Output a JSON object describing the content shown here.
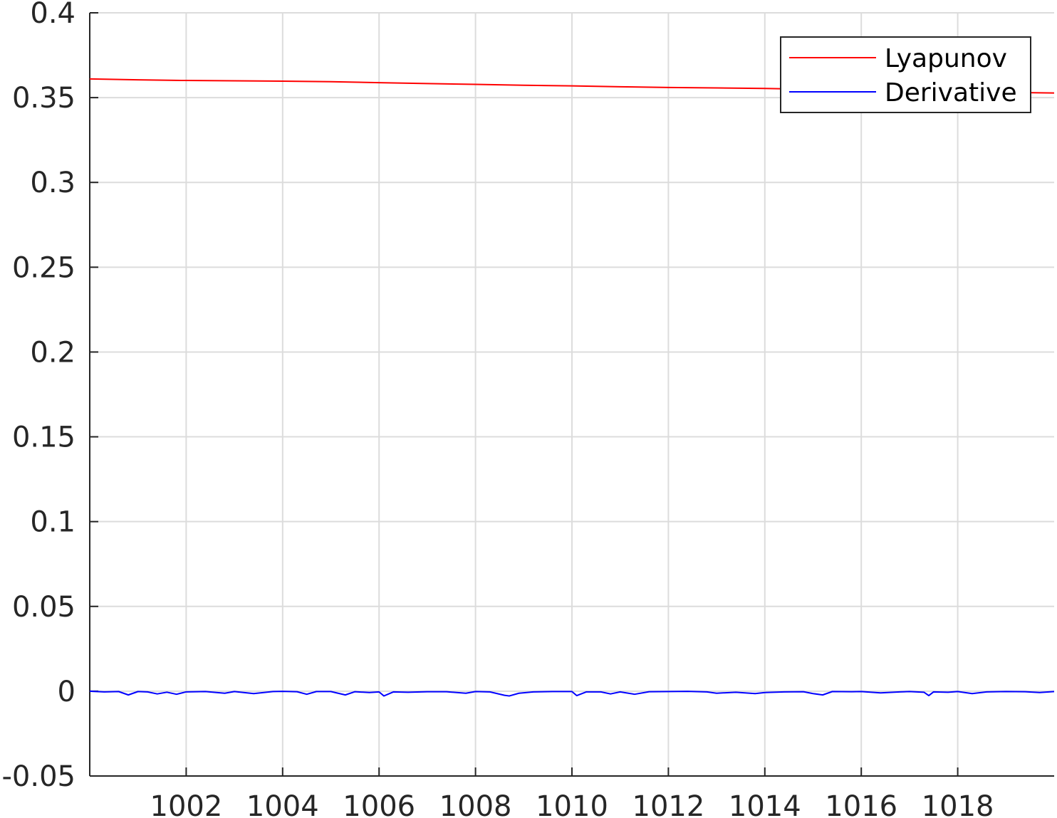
{
  "chart_data": {
    "type": "line",
    "title": "",
    "xlabel": "",
    "ylabel": "",
    "xlim": [
      1000,
      1020
    ],
    "ylim": [
      -0.05,
      0.4
    ],
    "grid": true,
    "legend_position": "top-right",
    "x_ticks": [
      1002,
      1004,
      1006,
      1008,
      1010,
      1012,
      1014,
      1016,
      1018
    ],
    "x_tick_labels": [
      "1002",
      "1004",
      "1006",
      "1008",
      "1010",
      "1012",
      "1014",
      "1016",
      "1018"
    ],
    "y_ticks": [
      -0.05,
      0,
      0.05,
      0.1,
      0.15,
      0.2,
      0.25,
      0.3,
      0.35,
      0.4
    ],
    "y_tick_labels": [
      "-0.05",
      "0",
      "0.05",
      "0.1",
      "0.15",
      "0.2",
      "0.25",
      "0.3",
      "0.35",
      "0.4"
    ],
    "series": [
      {
        "name": "Lyapunov",
        "color": "#ff0000",
        "x": [
          1000,
          1001,
          1002,
          1003,
          1004,
          1005,
          1006,
          1007,
          1008,
          1009,
          1010,
          1011,
          1012,
          1013,
          1014,
          1015,
          1016,
          1017,
          1018,
          1019,
          1020
        ],
        "y": [
          0.361,
          0.3605,
          0.3601,
          0.3599,
          0.3597,
          0.3594,
          0.3588,
          0.3583,
          0.3578,
          0.3573,
          0.3569,
          0.3564,
          0.356,
          0.3557,
          0.3554,
          0.3549,
          0.3544,
          0.354,
          0.3535,
          0.3531,
          0.3527
        ]
      },
      {
        "name": "Derivative",
        "color": "#0000ff",
        "x": [
          1000,
          1000.3,
          1000.6,
          1000.8,
          1001,
          1001.2,
          1001.4,
          1001.6,
          1001.8,
          1002,
          1002.4,
          1002.8,
          1003,
          1003.4,
          1003.8,
          1004,
          1004.3,
          1004.5,
          1004.7,
          1005,
          1005.3,
          1005.5,
          1005.8,
          1006,
          1006.1,
          1006.3,
          1006.6,
          1007,
          1007.4,
          1007.8,
          1008,
          1008.3,
          1008.6,
          1008.7,
          1008.9,
          1009.2,
          1009.6,
          1010,
          1010.1,
          1010.3,
          1010.6,
          1010.8,
          1011,
          1011.3,
          1011.6,
          1012,
          1012.4,
          1012.8,
          1013,
          1013.4,
          1013.8,
          1014,
          1014.4,
          1014.8,
          1015,
          1015.2,
          1015.4,
          1015.8,
          1016,
          1016.4,
          1016.8,
          1017,
          1017.3,
          1017.4,
          1017.5,
          1017.8,
          1018,
          1018.3,
          1018.6,
          1019,
          1019.4,
          1019.7,
          1020
        ],
        "y": [
          0,
          -0.0004,
          -0.0002,
          -0.0022,
          -0.0002,
          -0.0004,
          -0.0016,
          -0.0006,
          -0.0018,
          -0.0004,
          -0.0002,
          -0.0012,
          -0.0002,
          -0.0014,
          -0.0002,
          -0.0001,
          -0.0003,
          -0.0018,
          -0.0002,
          -0.0002,
          -0.0022,
          -0.0003,
          -0.0008,
          -0.0004,
          -0.0028,
          -0.0004,
          -0.0006,
          -0.0003,
          -0.0003,
          -0.0012,
          -0.0002,
          -0.0004,
          -0.0024,
          -0.0028,
          -0.0012,
          -0.0004,
          -0.0002,
          -0.0002,
          -0.0026,
          -0.0004,
          -0.0004,
          -0.0016,
          -0.0004,
          -0.0018,
          -0.0003,
          -0.0002,
          -0.0001,
          -0.0004,
          -0.0012,
          -0.0006,
          -0.0014,
          -0.0008,
          -0.0004,
          -0.0003,
          -0.0014,
          -0.0022,
          -0.0002,
          -0.0003,
          -0.0002,
          -0.001,
          -0.0004,
          -0.0002,
          -0.0006,
          -0.0026,
          -0.0004,
          -0.0006,
          -0.0002,
          -0.0014,
          -0.0004,
          -0.0002,
          -0.0003,
          -0.0008,
          -0.0002
        ]
      }
    ]
  }
}
